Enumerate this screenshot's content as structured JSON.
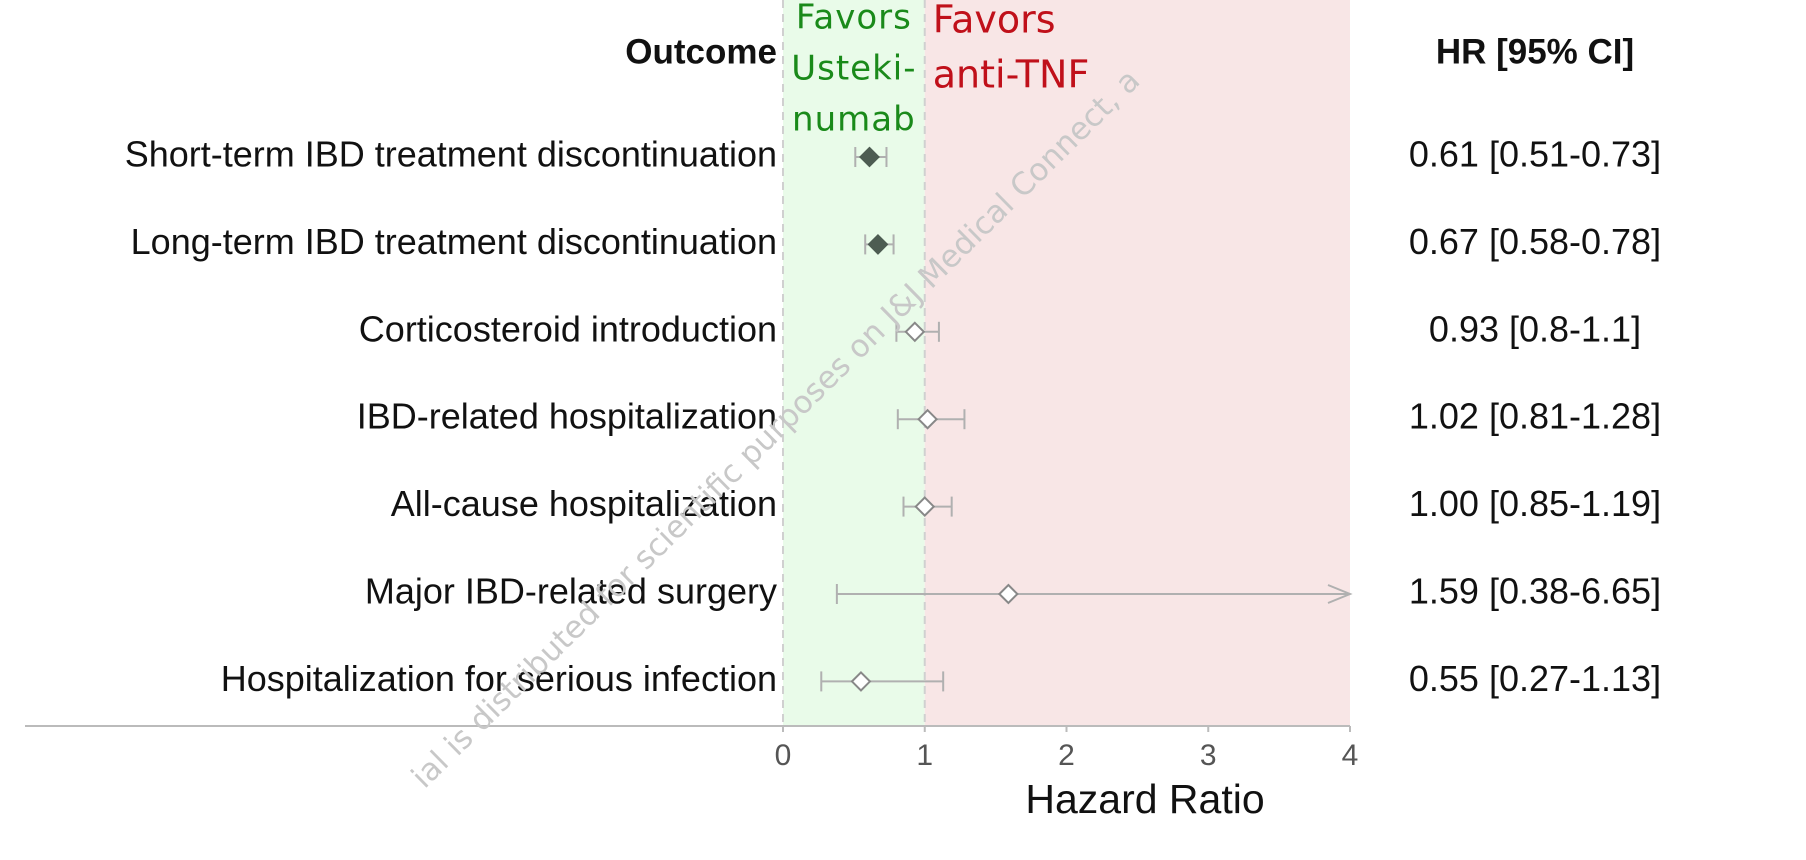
{
  "chart_data": {
    "type": "forest",
    "column_headers": [
      "Outcome",
      "HR [95% CI]"
    ],
    "categories": [
      "Short-term IBD treatment discontinuation",
      "Long-term IBD treatment discontinuation",
      "Corticosteroid introduction",
      "IBD-related hospitalization",
      "All-cause hospitalization",
      "Major IBD-related surgery",
      "Hospitalization for serious infection"
    ],
    "values": [
      0.61,
      0.67,
      0.93,
      1.02,
      1.0,
      1.59,
      0.55
    ],
    "lower": [
      0.51,
      0.58,
      0.8,
      0.81,
      0.85,
      0.38,
      0.27
    ],
    "upper": [
      0.73,
      0.78,
      1.1,
      1.28,
      1.19,
      6.65,
      1.13
    ],
    "value_labels": [
      "0.61 [0.51-0.73]",
      "0.67 [0.58-0.78]",
      "0.93 [0.8-1.1]",
      "1.02 [0.81-1.28]",
      "1.00 [0.85-1.19]",
      "1.59 [0.38-6.65]",
      "0.55 [0.27-1.13]"
    ],
    "filled": [
      true,
      true,
      false,
      false,
      false,
      false,
      false
    ],
    "marker_color": "#4d5c52",
    "ci_color": "#b0b0b0",
    "xlabel": "Hazard Ratio",
    "xlim": [
      0,
      4
    ],
    "xticks": [
      0,
      1,
      2,
      3,
      4
    ],
    "reference": 1,
    "regions": [
      {
        "label_lines": [
          "Favors",
          "Usteki-",
          "numab"
        ],
        "color": "#e9fbe9",
        "text_color": "#1a8a1a"
      },
      {
        "label_lines": [
          "Favors",
          "anti-TNF"
        ],
        "color": "#f8e6e6",
        "text_color": "#c0101a"
      }
    ],
    "watermark": "ial is distributed for scientific purposes on J&J Medical Connect, a"
  }
}
